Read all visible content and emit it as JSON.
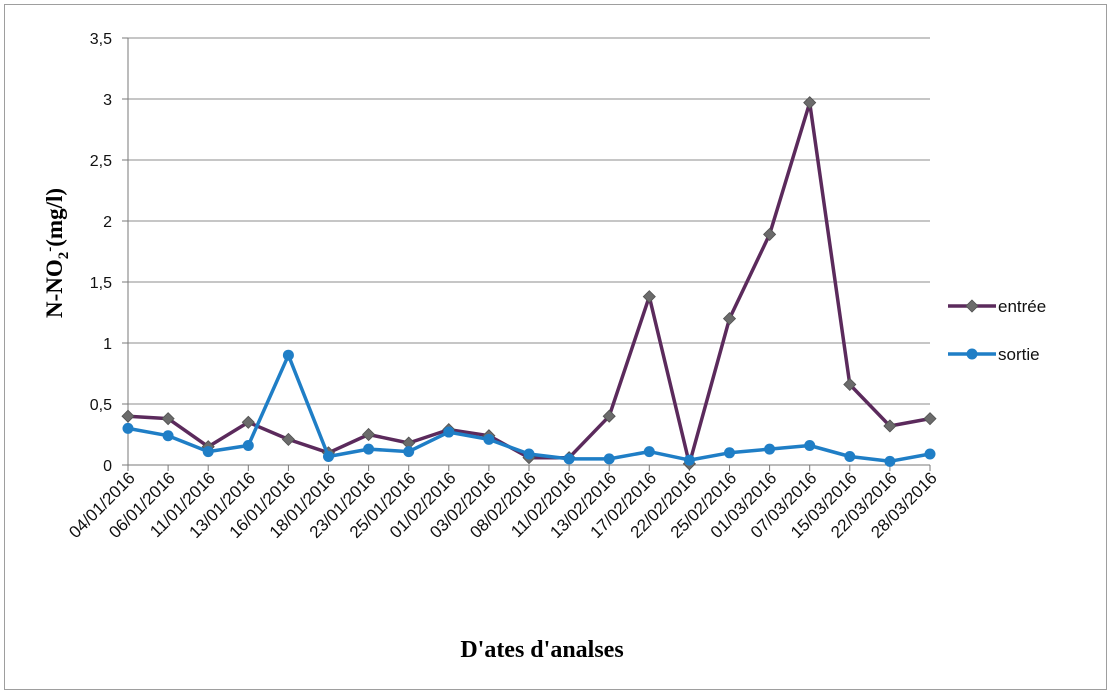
{
  "chart_data": {
    "type": "line",
    "xlabel": "D'ates d'analses",
    "ylabel_main": "N-NO",
    "ylabel_sub": "2",
    "ylabel_sup": "-",
    "ylabel_unit": "(mg/l)",
    "ylim": [
      0,
      3.5
    ],
    "yticks": [
      {
        "v": 0,
        "label": "0"
      },
      {
        "v": 0.5,
        "label": "0,5"
      },
      {
        "v": 1,
        "label": "1"
      },
      {
        "v": 1.5,
        "label": "1,5"
      },
      {
        "v": 2,
        "label": "2"
      },
      {
        "v": 2.5,
        "label": "2,5"
      },
      {
        "v": 3,
        "label": "3"
      },
      {
        "v": 3.5,
        "label": "3,5"
      }
    ],
    "grid": "horizontal",
    "legend_position": "right",
    "categories": [
      "04/01/2016",
      "06/01/2016",
      "11/01/2016",
      "13/01/2016",
      "16/01/2016",
      "18/01/2016",
      "23/01/2016",
      "25/01/2016",
      "01/02/2016",
      "03/02/2016",
      "08/02/2016",
      "11/02/2016",
      "13/02/2016",
      "17/02/2016",
      "22/02/2016",
      "25/02/2016",
      "01/03/2016",
      "07/03/2016",
      "15/03/2016",
      "22/03/2016",
      "28/03/2016"
    ],
    "series": [
      {
        "name": "entrée",
        "color": "#5b2a5c",
        "marker": "diamond",
        "values": [
          0.4,
          0.38,
          0.15,
          0.35,
          0.21,
          0.1,
          0.25,
          0.18,
          0.29,
          0.24,
          0.06,
          0.06,
          0.4,
          1.38,
          0.01,
          1.2,
          1.89,
          2.97,
          0.66,
          0.32,
          0.38
        ]
      },
      {
        "name": "sortie",
        "color": "#1f7ec6",
        "marker": "circle",
        "values": [
          0.3,
          0.24,
          0.11,
          0.16,
          0.9,
          0.07,
          0.13,
          0.11,
          0.27,
          0.21,
          0.09,
          0.05,
          0.05,
          0.11,
          0.04,
          0.1,
          0.13,
          0.16,
          0.07,
          0.03,
          0.09
        ]
      }
    ]
  }
}
